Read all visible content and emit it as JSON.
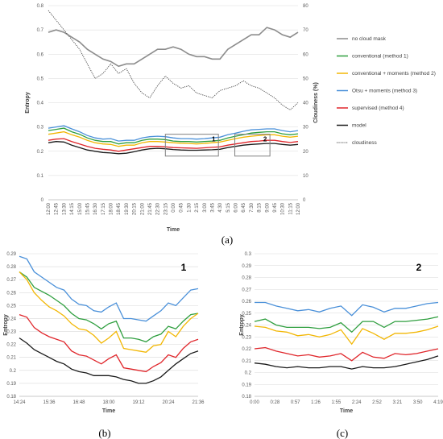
{
  "chart_data": [
    {
      "panel": "(a)",
      "type": "line",
      "xlabel": "Time",
      "ylabel": "Entropy",
      "y2label": "Cloudiness (%)",
      "ylim": [
        0,
        0.8
      ],
      "y2lim": [
        0,
        80
      ],
      "yticks": [
        "0",
        "0.1",
        "0.2",
        "0.3",
        "0.4",
        "0.5",
        "0.6",
        "0.7",
        "0.8"
      ],
      "y2ticks": [
        "0",
        "10",
        "20",
        "30",
        "40",
        "50",
        "60",
        "70",
        "80"
      ],
      "categories": [
        "12:00",
        "12:45",
        "13:30",
        "14:15",
        "15:00",
        "15:45",
        "16:30",
        "17:15",
        "18:00",
        "18:45",
        "19:30",
        "20:15",
        "21:00",
        "21:45",
        "22:30",
        "23:15",
        "0:00",
        "0:45",
        "1:30",
        "2:15",
        "3:00",
        "3:45",
        "4:30",
        "5:15",
        "6:00",
        "6:45",
        "7:30",
        "8:15",
        "9:00",
        "9:45",
        "10:30",
        "11:15",
        "12:00"
      ],
      "grid": true,
      "legend": "right",
      "boxes": [
        {
          "label": "1",
          "x": [
            15.0,
            21.8
          ],
          "y": [
            0.18,
            0.27
          ]
        },
        {
          "label": "2",
          "x": [
            23.9,
            28.4
          ],
          "y": [
            0.18,
            0.27
          ]
        }
      ],
      "series": [
        {
          "name": "no cloud mask",
          "color": "#8c8c8c",
          "style": "solid",
          "axis": "left",
          "values": [
            0.69,
            0.7,
            0.69,
            0.67,
            0.65,
            0.62,
            0.6,
            0.58,
            0.57,
            0.55,
            0.56,
            0.56,
            0.58,
            0.6,
            0.62,
            0.62,
            0.63,
            0.62,
            0.6,
            0.59,
            0.59,
            0.58,
            0.58,
            0.62,
            0.64,
            0.66,
            0.68,
            0.68,
            0.71,
            0.7,
            0.68,
            0.67,
            0.69
          ]
        },
        {
          "name": "conventional (method 1)",
          "color": "#2e9e3e",
          "style": "solid",
          "axis": "left",
          "values": [
            0.285,
            0.29,
            0.295,
            0.28,
            0.27,
            0.255,
            0.245,
            0.24,
            0.24,
            0.23,
            0.235,
            0.235,
            0.245,
            0.25,
            0.25,
            0.248,
            0.242,
            0.24,
            0.24,
            0.238,
            0.24,
            0.242,
            0.245,
            0.255,
            0.262,
            0.268,
            0.275,
            0.278,
            0.28,
            0.28,
            0.272,
            0.268,
            0.272
          ]
        },
        {
          "name": "conventional + moments (method 2)",
          "color": "#f2b705",
          "style": "solid",
          "axis": "left",
          "values": [
            0.27,
            0.275,
            0.28,
            0.268,
            0.258,
            0.245,
            0.235,
            0.23,
            0.228,
            0.22,
            0.225,
            0.225,
            0.235,
            0.24,
            0.24,
            0.238,
            0.235,
            0.233,
            0.232,
            0.23,
            0.232,
            0.235,
            0.238,
            0.245,
            0.252,
            0.258,
            0.262,
            0.265,
            0.268,
            0.268,
            0.262,
            0.258,
            0.262
          ]
        },
        {
          "name": "Otsu + moments (method 3)",
          "color": "#4a90d9",
          "style": "solid",
          "axis": "left",
          "values": [
            0.295,
            0.3,
            0.305,
            0.292,
            0.28,
            0.265,
            0.255,
            0.25,
            0.252,
            0.242,
            0.245,
            0.245,
            0.255,
            0.26,
            0.262,
            0.26,
            0.255,
            0.252,
            0.252,
            0.25,
            0.252,
            0.255,
            0.258,
            0.268,
            0.275,
            0.282,
            0.288,
            0.29,
            0.292,
            0.292,
            0.285,
            0.28,
            0.285
          ]
        },
        {
          "name": "supervised (method 4)",
          "color": "#e0262b",
          "style": "solid",
          "axis": "left",
          "values": [
            0.245,
            0.25,
            0.252,
            0.24,
            0.23,
            0.22,
            0.212,
            0.208,
            0.205,
            0.2,
            0.205,
            0.21,
            0.215,
            0.22,
            0.22,
            0.218,
            0.215,
            0.214,
            0.213,
            0.212,
            0.214,
            0.216,
            0.218,
            0.225,
            0.23,
            0.235,
            0.24,
            0.242,
            0.245,
            0.245,
            0.24,
            0.236,
            0.24
          ]
        },
        {
          "name": "model",
          "color": "#1a1a1a",
          "style": "solid",
          "axis": "left",
          "values": [
            0.235,
            0.24,
            0.238,
            0.225,
            0.215,
            0.205,
            0.2,
            0.195,
            0.193,
            0.19,
            0.192,
            0.198,
            0.205,
            0.21,
            0.212,
            0.21,
            0.207,
            0.205,
            0.204,
            0.204,
            0.205,
            0.206,
            0.208,
            0.215,
            0.22,
            0.225,
            0.228,
            0.23,
            0.232,
            0.232,
            0.228,
            0.225,
            0.228
          ]
        },
        {
          "name": "cloudiness",
          "color": "#404040",
          "style": "dotted",
          "axis": "right",
          "values": [
            78,
            74,
            70,
            66,
            62,
            56,
            50,
            52,
            56,
            52,
            54,
            48,
            44,
            42,
            47,
            51,
            48,
            46,
            47,
            44,
            43,
            42,
            45,
            46,
            47,
            49,
            47,
            46,
            44,
            42,
            39,
            37,
            40
          ]
        }
      ]
    },
    {
      "panel": "(b)",
      "type": "line",
      "label": "1",
      "xlabel": "Time",
      "ylabel": "Entropy",
      "ylim": [
        0.18,
        0.29
      ],
      "yticks": [
        "0.18",
        "0.19",
        "0.2",
        "0.21",
        "0.22",
        "0.23",
        "0.24",
        "0.25",
        "0.26",
        "0.27",
        "0.28",
        "0.29"
      ],
      "xticks": [
        "14:24",
        "15:36",
        "16:48",
        "18:00",
        "19:12",
        "20:24",
        "21:36"
      ],
      "grid": true,
      "series": [
        {
          "color": "#4a90d9",
          "values": [
            0.288,
            0.286,
            0.276,
            0.272,
            0.268,
            0.264,
            0.262,
            0.255,
            0.251,
            0.25,
            0.246,
            0.245,
            0.249,
            0.252,
            0.24,
            0.24,
            0.239,
            0.238,
            0.242,
            0.246,
            0.252,
            0.25,
            0.256,
            0.262,
            0.263
          ]
        },
        {
          "color": "#2e9e3e",
          "values": [
            0.276,
            0.272,
            0.264,
            0.261,
            0.258,
            0.254,
            0.25,
            0.244,
            0.24,
            0.239,
            0.236,
            0.232,
            0.236,
            0.238,
            0.225,
            0.225,
            0.224,
            0.222,
            0.226,
            0.228,
            0.234,
            0.232,
            0.238,
            0.243,
            0.244
          ]
        },
        {
          "color": "#f2b705",
          "values": [
            0.276,
            0.27,
            0.26,
            0.254,
            0.249,
            0.246,
            0.242,
            0.236,
            0.232,
            0.231,
            0.227,
            0.221,
            0.225,
            0.23,
            0.217,
            0.216,
            0.215,
            0.214,
            0.219,
            0.22,
            0.23,
            0.226,
            0.234,
            0.24,
            0.244
          ]
        },
        {
          "color": "#e0262b",
          "values": [
            0.243,
            0.241,
            0.233,
            0.229,
            0.226,
            0.224,
            0.222,
            0.215,
            0.212,
            0.211,
            0.208,
            0.205,
            0.209,
            0.212,
            0.202,
            0.201,
            0.2,
            0.199,
            0.203,
            0.206,
            0.212,
            0.21,
            0.217,
            0.222,
            0.224
          ]
        },
        {
          "color": "#1a1a1a",
          "values": [
            0.225,
            0.221,
            0.216,
            0.213,
            0.21,
            0.207,
            0.205,
            0.201,
            0.199,
            0.198,
            0.196,
            0.196,
            0.196,
            0.195,
            0.193,
            0.192,
            0.19,
            0.19,
            0.192,
            0.195,
            0.2,
            0.205,
            0.209,
            0.213,
            0.215
          ]
        }
      ]
    },
    {
      "panel": "(c)",
      "type": "line",
      "label": "2",
      "xlabel": "Time",
      "ylabel": "Entropy",
      "ylim": [
        0.18,
        0.3
      ],
      "yticks": [
        "0.18",
        "0.19",
        "0.2",
        "0.21",
        "0.22",
        "0.23",
        "0.24",
        "0.25",
        "0.26",
        "0.27",
        "0.28",
        "0.29",
        "0.3"
      ],
      "xticks": [
        "0:00",
        "0:28",
        "0:57",
        "1:26",
        "1:55",
        "2:24",
        "2:52",
        "3:21",
        "3:50",
        "4:19"
      ],
      "grid": true,
      "series": [
        {
          "color": "#4a90d9",
          "values": [
            0.259,
            0.259,
            0.256,
            0.254,
            0.252,
            0.253,
            0.251,
            0.254,
            0.256,
            0.248,
            0.257,
            0.255,
            0.251,
            0.254,
            0.254,
            0.256,
            0.258,
            0.259
          ]
        },
        {
          "color": "#2e9e3e",
          "values": [
            0.243,
            0.245,
            0.24,
            0.238,
            0.238,
            0.238,
            0.237,
            0.238,
            0.242,
            0.234,
            0.243,
            0.243,
            0.238,
            0.243,
            0.243,
            0.244,
            0.245,
            0.247
          ]
        },
        {
          "color": "#f2b705",
          "values": [
            0.239,
            0.238,
            0.235,
            0.234,
            0.231,
            0.232,
            0.23,
            0.232,
            0.236,
            0.224,
            0.237,
            0.233,
            0.228,
            0.233,
            0.233,
            0.234,
            0.236,
            0.239
          ]
        },
        {
          "color": "#e0262b",
          "values": [
            0.22,
            0.221,
            0.218,
            0.216,
            0.214,
            0.215,
            0.213,
            0.214,
            0.216,
            0.21,
            0.217,
            0.213,
            0.212,
            0.216,
            0.215,
            0.216,
            0.218,
            0.22
          ]
        },
        {
          "color": "#1a1a1a",
          "values": [
            0.208,
            0.207,
            0.205,
            0.204,
            0.205,
            0.204,
            0.204,
            0.205,
            0.205,
            0.203,
            0.205,
            0.204,
            0.204,
            0.205,
            0.207,
            0.209,
            0.211,
            0.214
          ]
        }
      ]
    }
  ]
}
